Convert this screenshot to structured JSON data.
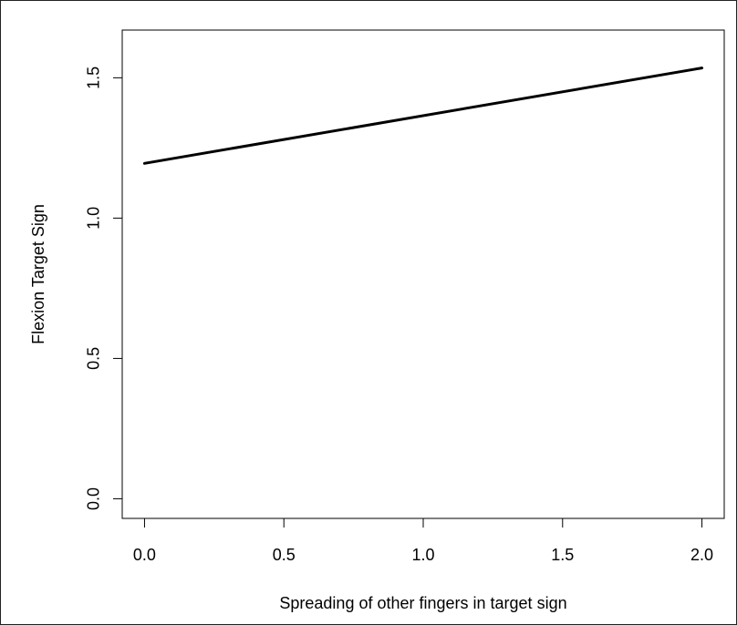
{
  "chart_data": {
    "type": "line",
    "title": "",
    "xlabel": "Spreading of other fingers in target sign",
    "ylabel": "Flexion Target Sign",
    "xlim": [
      -0.08,
      2.08
    ],
    "ylim": [
      -0.07,
      1.67
    ],
    "x_ticks": [
      0.0,
      0.5,
      1.0,
      1.5,
      2.0
    ],
    "x_tick_labels": [
      "0.0",
      "0.5",
      "1.0",
      "1.5",
      "2.0"
    ],
    "y_ticks": [
      0.0,
      0.5,
      1.0,
      1.5
    ],
    "y_tick_labels": [
      "0.0",
      "0.5",
      "1.0",
      "1.5"
    ],
    "grid": false,
    "legend": "none",
    "series": [
      {
        "x": [
          0.0,
          2.0
        ],
        "y": [
          1.195,
          1.535
        ],
        "color": "#000000"
      }
    ]
  }
}
